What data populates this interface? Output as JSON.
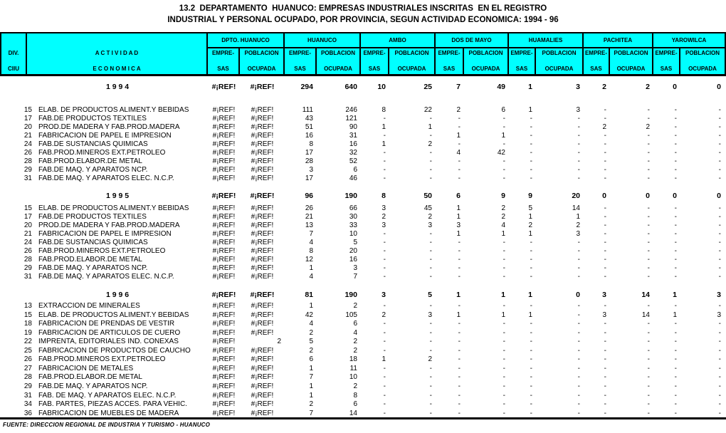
{
  "title": {
    "line1": "13.2  DEPARTAMENTO  HUANUCO: EMPRESAS INDUSTRIALES INSCRITAS  EN EL REGISTRO",
    "line2": "INDUSTRIAL Y PERSONAL OCUPADO, POR PROVINCIA, SEGUN ACTIVIDAD ECONOMICA: 1994 - 96"
  },
  "colors": {
    "header_bg": "#00ffff",
    "border": "#000000",
    "text": "#000000"
  },
  "error_value": "#¡REF!",
  "header": {
    "div_col": [
      "DIV.",
      "CIIU"
    ],
    "activity_col": [
      "A C T I V I D A D",
      "E C O N O M I C A"
    ],
    "subcol_empresas": [
      "EMPRE-",
      "SAS"
    ],
    "subcol_poblacion": [
      "POBLACION",
      "OCUPADA"
    ],
    "groups": [
      "DPTO. HUANUCO",
      "HUANUCO",
      "AMBO",
      "DOS DE MAYO",
      "HUAMALIES",
      "PACHITEA",
      "YAROWILCA"
    ]
  },
  "sections": [
    {
      "year": "1 9 9 4",
      "totals": [
        "#¡REF!",
        "#¡REF!",
        "294",
        "640",
        "10",
        "25",
        "7",
        "49",
        "1",
        "3",
        "2",
        "2",
        "0",
        "0"
      ],
      "rows": [
        {
          "code": "15",
          "name": "ELAB. DE PRODUCTOS ALIMENT.Y BEBIDAS",
          "values": [
            "#¡REF!",
            "#¡REF!",
            "111",
            "246",
            "8",
            "22",
            "2",
            "6",
            "1",
            "3",
            "-",
            "-",
            "-",
            "-"
          ]
        },
        {
          "code": "17",
          "name": "FAB.DE PRODUCTOS TEXTILES",
          "values": [
            "#¡REF!",
            "#¡REF!",
            "43",
            "121",
            "-",
            "-",
            "-",
            "-",
            "-",
            "-",
            "-",
            "-",
            "-",
            "-"
          ]
        },
        {
          "code": "20",
          "name": "PROD.DE MADERA Y FAB.PROD.MADERA",
          "values": [
            "#¡REF!",
            "#¡REF!",
            "51",
            "90",
            "1",
            "1",
            "-",
            "-",
            "-",
            "-",
            "2",
            "2",
            "-",
            "-"
          ]
        },
        {
          "code": "21",
          "name": "FABRICACION DE PAPEL E IMPRESION",
          "values": [
            "#¡REF!",
            "#¡REF!",
            "16",
            "31",
            "-",
            "-",
            "1",
            "1",
            "-",
            "-",
            "-",
            "-",
            "-",
            "-"
          ]
        },
        {
          "code": "24",
          "name": "FAB.DE SUSTANCIAS QUIMICAS",
          "values": [
            "#¡REF!",
            "#¡REF!",
            "8",
            "16",
            "1",
            "2",
            "-",
            "-",
            "-",
            "-",
            "-",
            "-",
            "-",
            "-"
          ]
        },
        {
          "code": "26",
          "name": "FAB.PROD.MINEROS EXT.PETROLEO",
          "values": [
            "#¡REF!",
            "#¡REF!",
            "17",
            "32",
            "-",
            "-",
            "4",
            "42",
            "-",
            "-",
            "-",
            "-",
            "-",
            "-"
          ]
        },
        {
          "code": "28",
          "name": "FAB.PROD.ELABOR.DE METAL",
          "values": [
            "#¡REF!",
            "#¡REF!",
            "28",
            "52",
            "-",
            "-",
            "-",
            "-",
            "-",
            "-",
            "-",
            "-",
            "-",
            "-"
          ]
        },
        {
          "code": "29",
          "name": "FAB.DE MAQ. Y APARATOS NCP.",
          "values": [
            "#¡REF!",
            "#¡REF!",
            "3",
            "6",
            "-",
            "-",
            "-",
            "-",
            "-",
            "-",
            "-",
            "-",
            "-",
            "-"
          ]
        },
        {
          "code": "31",
          "name": "FAB.DE MAQ. Y APARATOS ELEC. N.C.P.",
          "values": [
            "#¡REF!",
            "#¡REF!",
            "17",
            "46",
            "-",
            "-",
            "-",
            "-",
            "-",
            "-",
            "-",
            "-",
            "-",
            "-"
          ]
        }
      ]
    },
    {
      "year": "1 9 9 5",
      "totals": [
        "#¡REF!",
        "#¡REF!",
        "96",
        "190",
        "8",
        "50",
        "6",
        "9",
        "9",
        "20",
        "0",
        "0",
        "0",
        "0"
      ],
      "rows": [
        {
          "code": "15",
          "name": "ELAB. DE PRODUCTOS ALIMENT.Y BEBIDAS",
          "values": [
            "#¡REF!",
            "#¡REF!",
            "26",
            "66",
            "3",
            "45",
            "1",
            "2",
            "5",
            "14",
            "-",
            "-",
            "-",
            "-"
          ]
        },
        {
          "code": "17",
          "name": "FAB.DE PRODUCTOS TEXTILES",
          "values": [
            "#¡REF!",
            "#¡REF!",
            "21",
            "30",
            "2",
            "2",
            "1",
            "2",
            "1",
            "1",
            "-",
            "-",
            "-",
            "-"
          ]
        },
        {
          "code": "20",
          "name": "PROD.DE MADERA Y FAB.PROD.MADERA",
          "values": [
            "#¡REF!",
            "#¡REF!",
            "13",
            "33",
            "3",
            "3",
            "3",
            "4",
            "2",
            "2",
            "-",
            "-",
            "-",
            "-"
          ]
        },
        {
          "code": "21",
          "name": "FABRICACION DE PAPEL E IMPRESION",
          "values": [
            "#¡REF!",
            "#¡REF!",
            "7",
            "10",
            "-",
            "-",
            "1",
            "1",
            "1",
            "3",
            "-",
            "-",
            "-",
            "-"
          ]
        },
        {
          "code": "24",
          "name": "FAB.DE SUSTANCIAS QUIMICAS",
          "values": [
            "#¡REF!",
            "#¡REF!",
            "4",
            "5",
            "-",
            "-",
            "-",
            "-",
            "-",
            "-",
            "-",
            "-",
            "-",
            "-"
          ]
        },
        {
          "code": "26",
          "name": "FAB.PROD.MINEROS EXT.PETROLEO",
          "values": [
            "#¡REF!",
            "#¡REF!",
            "8",
            "20",
            "-",
            "-",
            "-",
            "-",
            "-",
            "-",
            "-",
            "-",
            "-",
            "-"
          ]
        },
        {
          "code": "28",
          "name": "FAB.PROD.ELABOR.DE METAL",
          "values": [
            "#¡REF!",
            "#¡REF!",
            "12",
            "16",
            "-",
            "-",
            "-",
            "-",
            "-",
            "-",
            "-",
            "-",
            "-",
            "-"
          ]
        },
        {
          "code": "29",
          "name": "FAB.DE MAQ. Y APARATOS NCP.",
          "values": [
            "#¡REF!",
            "#¡REF!",
            "1",
            "3",
            "-",
            "-",
            "-",
            "-",
            "-",
            "-",
            "-",
            "-",
            "-",
            "-"
          ]
        },
        {
          "code": "31",
          "name": "FAB.DE MAQ. Y APARATOS ELEC. N.C.P.",
          "values": [
            "#¡REF!",
            "#¡REF!",
            "4",
            "7",
            "-",
            "-",
            "-",
            "-",
            "-",
            "-",
            "-",
            "-",
            "-",
            "-"
          ]
        }
      ]
    },
    {
      "year": "1 9 9 6",
      "totals": [
        "#¡REF!",
        "#¡REF!",
        "81",
        "190",
        "3",
        "5",
        "1",
        "1",
        "1",
        "0",
        "3",
        "14",
        "1",
        "3"
      ],
      "rows": [
        {
          "code": "13",
          "name": "EXTRACCION DE MINERALES",
          "values": [
            "#¡REF!",
            "#¡REF!",
            "1",
            "2",
            "-",
            "-",
            "-",
            "-",
            "-",
            "-",
            "-",
            "-",
            "-",
            "-"
          ]
        },
        {
          "code": "15",
          "name": "ELAB. DE PRODUCTOS ALIMENT.Y BEBIDAS",
          "values": [
            "#¡REF!",
            "#¡REF!",
            "42",
            "105",
            "2",
            "3",
            "1",
            "1",
            "1",
            "-",
            "3",
            "14",
            "1",
            "3"
          ]
        },
        {
          "code": "18",
          "name": "FABRICACION DE PRENDAS DE VESTIR",
          "values": [
            "#¡REF!",
            "#¡REF!",
            "4",
            "6",
            "-",
            "-",
            "-",
            "-",
            "-",
            "-",
            "-",
            "-",
            "-",
            "-"
          ]
        },
        {
          "code": "19",
          "name": "FABRICACION DE ARTICULOS DE CUERO",
          "values": [
            "#¡REF!",
            "#¡REF!",
            "2",
            "4",
            "-",
            "-",
            "-",
            "-",
            "-",
            "-",
            "-",
            "-",
            "-",
            "-"
          ]
        },
        {
          "code": "22",
          "name": "IMPRENTA, EDITORIALES IND. CONEXAS",
          "values": [
            "#¡REF!",
            "2",
            "5",
            "2",
            "-",
            "-",
            "-",
            "-",
            "-",
            "-",
            "-",
            "-",
            "-",
            "-"
          ]
        },
        {
          "code": "25",
          "name": "FABRICACION DE PRODUCTOS DE CAUCHO",
          "values": [
            "#¡REF!",
            "#¡REF!",
            "2",
            "2",
            "-",
            "-",
            "-",
            "-",
            "-",
            "-",
            "-",
            "-",
            "-",
            "-"
          ]
        },
        {
          "code": "26",
          "name": "FAB.PROD.MINEROS EXT.PETROLEO",
          "values": [
            "#¡REF!",
            "#¡REF!",
            "6",
            "18",
            "1",
            "2",
            "-",
            "-",
            "-",
            "-",
            "-",
            "-",
            "-",
            "-"
          ]
        },
        {
          "code": "27",
          "name": "FABRICACION DE METALES",
          "values": [
            "#¡REF!",
            "#¡REF!",
            "1",
            "11",
            "-",
            "-",
            "-",
            "-",
            "-",
            "-",
            "-",
            "-",
            "-",
            "-"
          ]
        },
        {
          "code": "28",
          "name": "FAB.PROD.ELABOR.DE METAL",
          "values": [
            "#¡REF!",
            "#¡REF!",
            "7",
            "10",
            "-",
            "-",
            "-",
            "-",
            "-",
            "-",
            "-",
            "-",
            "-",
            "-"
          ]
        },
        {
          "code": "29",
          "name": "FAB.DE MAQ. Y APARATOS NCP.",
          "values": [
            "#¡REF!",
            "#¡REF!",
            "1",
            "2",
            "-",
            "-",
            "-",
            "-",
            "-",
            "-",
            "-",
            "-",
            "-",
            "-"
          ]
        },
        {
          "code": "31",
          "name": "FAB. DE MAQ. Y APARATOS ELEC. N.C.P.",
          "values": [
            "#¡REF!",
            "#¡REF!",
            "1",
            "8",
            "-",
            "-",
            "-",
            "-",
            "-",
            "-",
            "-",
            "-",
            "-",
            "-"
          ]
        },
        {
          "code": "34",
          "name": "FAB. PARTES, PIEZAS ACCES. PARA VEHIC.",
          "values": [
            "#¡REF!",
            "#¡REF!",
            "2",
            "6",
            "-",
            "-",
            "-",
            "-",
            "-",
            "-",
            "-",
            "-",
            "-",
            "-"
          ]
        },
        {
          "code": "36",
          "name": "FABRICACION DE MUEBLES DE MADERA",
          "values": [
            "#¡REF!",
            "#¡REF!",
            "7",
            "14",
            "-",
            "-",
            "-",
            "-",
            "-",
            "-",
            "-",
            "-",
            "-",
            "-"
          ]
        }
      ]
    }
  ],
  "footer": {
    "source": "FUENTE: DIRECCION REGIONAL DE INDUSTRIA Y TURISMO - HUANUCO"
  }
}
